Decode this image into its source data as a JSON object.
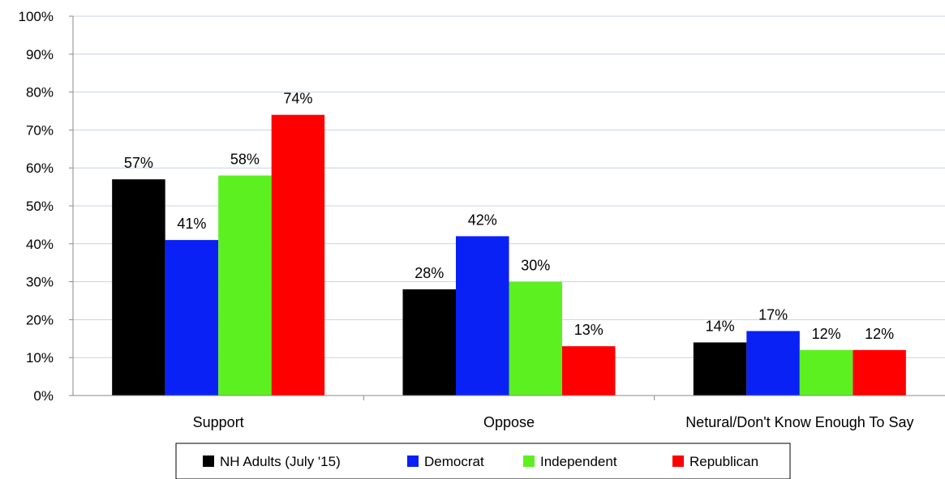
{
  "chart_data": {
    "type": "bar",
    "categories": [
      "Support",
      "Oppose",
      "Netural/Don't Know Enough To Say"
    ],
    "series": [
      {
        "name": "NH Adults (July '15)",
        "color": "#000000",
        "values": [
          57,
          28,
          14
        ],
        "labels": [
          "57%",
          "28%",
          "14%"
        ]
      },
      {
        "name": "Democrat",
        "color": "#0a21f5",
        "values": [
          41,
          42,
          17
        ],
        "labels": [
          "41%",
          "42%",
          "17%"
        ]
      },
      {
        "name": "Independent",
        "color": "#5df021",
        "values": [
          58,
          30,
          12
        ],
        "labels": [
          "58%",
          "30%",
          "12%"
        ]
      },
      {
        "name": "Republican",
        "color": "#ff0000",
        "values": [
          74,
          13,
          12
        ],
        "labels": [
          "74%",
          "13%",
          "12%"
        ]
      }
    ],
    "ylim": [
      0,
      100
    ],
    "yticks": [
      "0%",
      "10%",
      "20%",
      "30%",
      "40%",
      "50%",
      "60%",
      "70%",
      "80%",
      "90%",
      "100%"
    ],
    "grid": true,
    "legend_position": "bottom"
  }
}
